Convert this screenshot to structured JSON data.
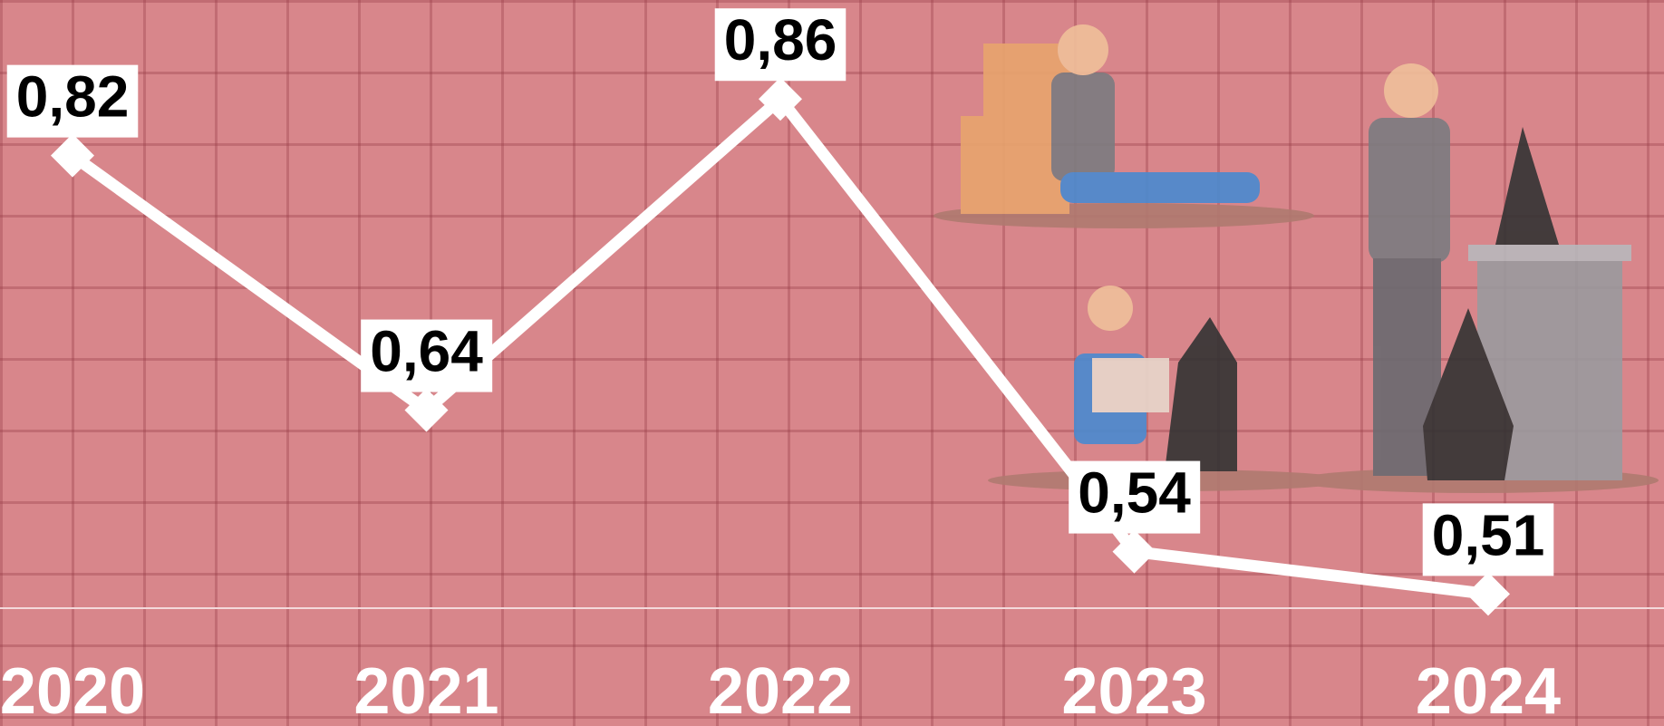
{
  "chart_data": {
    "type": "line",
    "categories": [
      "2020",
      "2021",
      "2022",
      "2023",
      "2024"
    ],
    "values": [
      0.82,
      0.64,
      0.86,
      0.54,
      0.51
    ],
    "value_labels": [
      "0,82",
      "0,64",
      "0,86",
      "0,54",
      "0,51"
    ],
    "color": "#ffffff",
    "ylim": [
      0.5,
      0.93
    ]
  }
}
